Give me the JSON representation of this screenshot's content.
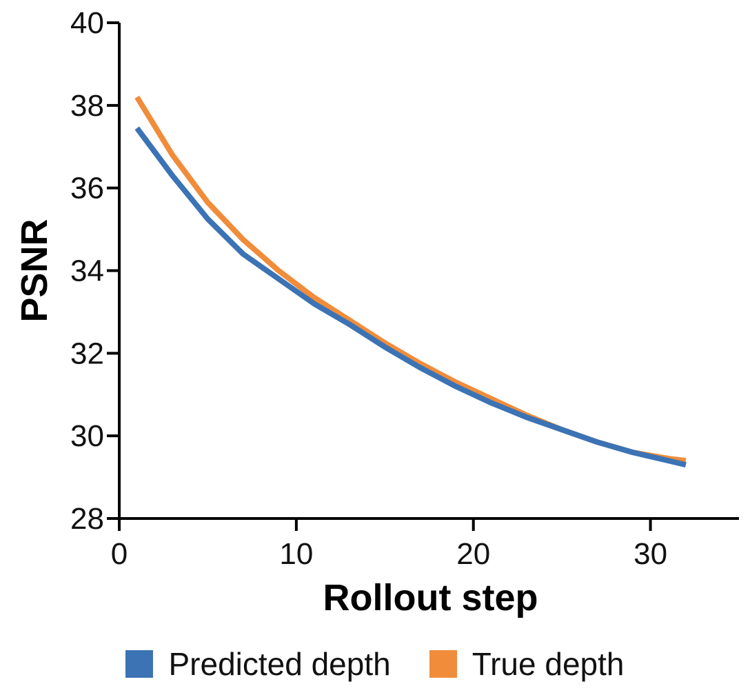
{
  "chart_data": {
    "type": "line",
    "title": "",
    "xlabel": "Rollout step",
    "ylabel": "PSNR",
    "xlim": [
      0,
      35
    ],
    "ylim": [
      28,
      40
    ],
    "xticks": [
      0,
      10,
      20,
      30
    ],
    "yticks": [
      28,
      30,
      32,
      34,
      36,
      38,
      40
    ],
    "grid": false,
    "legend_position": "bottom",
    "x": [
      1,
      3,
      5,
      7,
      9,
      11,
      13,
      15,
      17,
      19,
      21,
      23,
      25,
      27,
      29,
      31,
      32
    ],
    "series": [
      {
        "name": "Predicted depth",
        "color": "#3b73b4",
        "values": [
          37.45,
          36.3,
          35.25,
          34.4,
          33.8,
          33.2,
          32.7,
          32.15,
          31.65,
          31.2,
          30.8,
          30.45,
          30.15,
          29.85,
          29.6,
          29.4,
          29.3
        ]
      },
      {
        "name": "True depth",
        "color": "#f08c3a",
        "values": [
          38.2,
          36.8,
          35.65,
          34.75,
          34.0,
          33.35,
          32.8,
          32.25,
          31.75,
          31.3,
          30.9,
          30.5,
          30.15,
          29.85,
          29.6,
          29.45,
          29.4
        ]
      }
    ]
  }
}
